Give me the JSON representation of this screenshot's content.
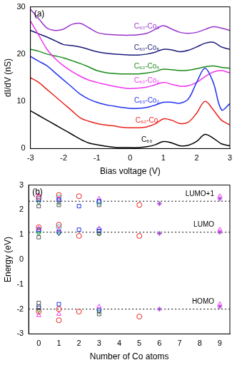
{
  "chart_data": [
    {
      "type": "line",
      "panel_label": "(a)",
      "x_label": "Bias voltage (V)",
      "y_label": "dI/dV (nS)",
      "x": [
        -3,
        -2.75,
        -2.5,
        -2.25,
        -2,
        -1.75,
        -1.5,
        -1.25,
        -1,
        -0.75,
        -0.5,
        -0.25,
        0,
        0.25,
        0.5,
        0.75,
        1,
        1.25,
        1.5,
        1.75,
        2,
        2.25,
        2.5,
        2.75,
        3
      ],
      "series": [
        {
          "name": "C₆₀",
          "color": "#000000",
          "values": [
            8,
            7,
            6,
            5,
            4,
            3,
            2,
            1.2,
            0.8,
            0.5,
            0.3,
            0.2,
            0.2,
            0.2,
            0.4,
            0.8,
            1.5,
            1.2,
            0.6,
            0.7,
            1.5,
            3.0,
            2.2,
            1.0,
            0.6
          ]
        },
        {
          "name": "C₆₀-Co",
          "color": "#e8211b",
          "values": [
            15,
            14,
            12.5,
            11,
            9.5,
            8,
            6.5,
            5.8,
            5.3,
            5,
            4.8,
            4.5,
            4.4,
            4.4,
            4.6,
            5.2,
            6.3,
            6.0,
            5.3,
            5.6,
            7.5,
            10,
            8.2,
            6.0,
            5.0
          ]
        },
        {
          "name": "C₆₀-Co₂",
          "color": "#2233ee",
          "values": [
            19.5,
            18.5,
            17.5,
            16,
            14.5,
            13,
            11.5,
            10.5,
            9.8,
            9.3,
            9,
            8.7,
            8.5,
            8.5,
            8.7,
            9.2,
            9.8,
            9.8,
            9.6,
            10.5,
            14,
            17,
            14,
            8.2,
            9.5
          ]
        },
        {
          "name": "C₆₀-Co₃",
          "color": "#ee33ee",
          "values": [
            27,
            24,
            21,
            19,
            17.5,
            16.3,
            15.3,
            14.5,
            14,
            13.6,
            13.2,
            12.9,
            12.7,
            12.8,
            13,
            13.5,
            14,
            13.6,
            13.2,
            13.3,
            14,
            15.2,
            16.2,
            16.5,
            16
          ]
        },
        {
          "name": "C₆₀-Co₅",
          "color": "#1a8a1a",
          "values": [
            21,
            20.6,
            20,
            19.6,
            19.2,
            18.6,
            18,
            17.3,
            16.5,
            16.1,
            15.9,
            15.8,
            15.8,
            15.8,
            16,
            16.3,
            16.8,
            16.7,
            16.5,
            16.6,
            16.9,
            17.3,
            17.5,
            17.2,
            17
          ]
        },
        {
          "name": "C₆₀-Co₆",
          "color": "#1a1a7a",
          "values": [
            25,
            24.3,
            23.6,
            22.8,
            22,
            21.8,
            21.5,
            21,
            20.5,
            20.2,
            20,
            19.9,
            19.8,
            19.8,
            20,
            20.4,
            21,
            20.9,
            20.5,
            20.8,
            21.5,
            22.3,
            22.5,
            21.5,
            21
          ]
        },
        {
          "name": "C₆₀-Co₉",
          "color": "#9933cc",
          "values": [
            29.5,
            27.5,
            25.5,
            25,
            25.3,
            26.3,
            26.5,
            25.6,
            24.6,
            24.2,
            24.1,
            24,
            24,
            24.1,
            24.4,
            25.2,
            26,
            25.3,
            24.6,
            24.4,
            24.6,
            25.2,
            25.8,
            25.5,
            25
          ]
        }
      ],
      "xlim": [
        -3,
        3
      ],
      "xticks": [
        -3,
        -2,
        -1,
        0,
        1,
        2,
        3
      ],
      "ylim": [
        0,
        30
      ],
      "yticks": [
        0,
        10,
        20,
        30
      ]
    },
    {
      "type": "scatter",
      "panel_label": "(b)",
      "x_label": "Number of Co atoms",
      "y_label": "Energy (eV)",
      "series": [
        {
          "color": "#555555",
          "marker": "square",
          "x": [
            0,
            0,
            0,
            0,
            1,
            3,
            3,
            3
          ],
          "values": [
            2.15,
            0.9,
            -1.75,
            -1.95,
            2.2,
            2.2,
            1.05,
            -2.2
          ]
        },
        {
          "color": "#e8211b",
          "marker": "circle",
          "x": [
            0,
            0,
            0,
            1,
            1,
            1,
            1,
            2,
            2,
            2,
            5,
            5,
            5
          ],
          "values": [
            2.5,
            1.3,
            -2.1,
            2.6,
            1.4,
            -2.0,
            -2.45,
            2.55,
            0.95,
            -2.1,
            2.2,
            0.95,
            -2.3
          ]
        },
        {
          "color": "#2233ee",
          "marker": "square",
          "x": [
            0,
            0,
            0,
            1,
            1,
            1,
            2,
            2,
            3,
            3,
            3
          ],
          "values": [
            2.4,
            1.2,
            -1.9,
            2.4,
            1.1,
            -1.8,
            2.15,
            1.2,
            2.35,
            1.15,
            -2.05
          ]
        },
        {
          "color": "#ee33ee",
          "marker": "triangle",
          "x": [
            0,
            0,
            0,
            1,
            1,
            1,
            3,
            3,
            3,
            9,
            9,
            9
          ],
          "values": [
            2.6,
            1.25,
            -2.25,
            2.45,
            1.2,
            -2.2,
            2.45,
            1.25,
            -1.9,
            2.55,
            1.2,
            -1.8
          ]
        },
        {
          "color": "#1a8a1a",
          "marker": "triangle_down",
          "x": [
            0,
            0,
            0,
            1,
            1,
            3,
            3
          ],
          "values": [
            2.3,
            1.05,
            -2.05,
            2.3,
            1.05,
            1.05,
            -2.1
          ]
        },
        {
          "color": "#22bbcc",
          "marker": "circle",
          "x": [
            0,
            0,
            1,
            1,
            3,
            3
          ],
          "values": [
            2.45,
            1.15,
            2.5,
            1.3,
            2.3,
            1.2
          ]
        },
        {
          "color": "#9933cc",
          "marker": "star",
          "x": [
            6,
            6,
            6,
            9,
            9,
            9
          ],
          "values": [
            2.25,
            1.05,
            -2.0,
            2.45,
            1.1,
            -1.9
          ]
        }
      ],
      "lines": [
        {
          "name": "LUMO+1",
          "value": 2.35,
          "line_style": "dotted"
        },
        {
          "name": "LUMO",
          "value": 1.1,
          "line_style": "dotted"
        },
        {
          "name": "HOMO",
          "value": -2.0,
          "line_style": "dotted"
        }
      ],
      "xlim": [
        -0.5,
        9.5
      ],
      "xticks": [
        0,
        1,
        2,
        3,
        4,
        5,
        6,
        7,
        8,
        9
      ],
      "ylim": [
        -3,
        3
      ],
      "yticks": [
        -3,
        -2,
        -1,
        0,
        1,
        2,
        3
      ]
    }
  ]
}
